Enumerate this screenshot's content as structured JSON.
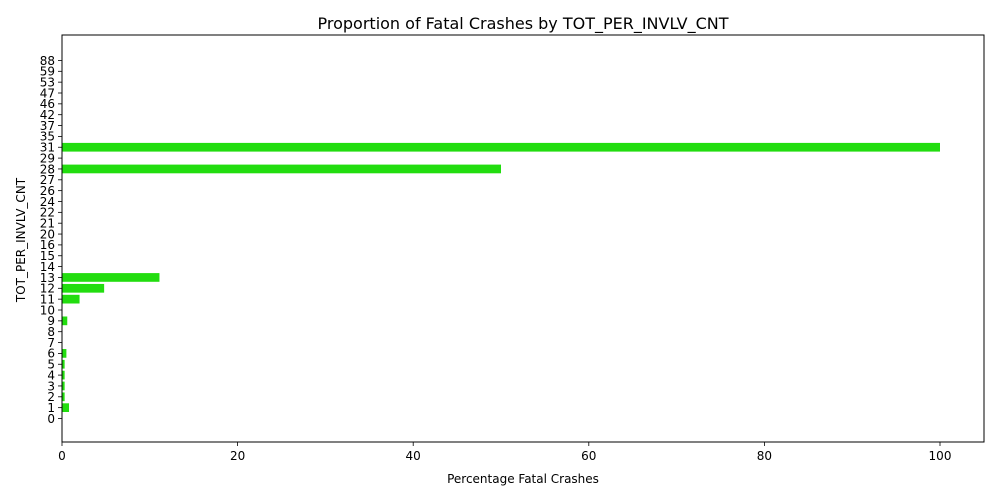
{
  "chart_data": {
    "type": "bar",
    "orientation": "horizontal",
    "title": "Proportion of Fatal Crashes by TOT_PER_INVLV_CNT",
    "xlabel": "Percentage Fatal Crashes",
    "ylabel": "TOT_PER_INVLV_CNT",
    "xlim": [
      0,
      105
    ],
    "x_ticks": [
      0,
      20,
      40,
      60,
      80,
      100
    ],
    "grid": false,
    "legend": "none",
    "bar_color": "#22dd0f",
    "categories": [
      "0",
      "1",
      "2",
      "3",
      "4",
      "5",
      "6",
      "7",
      "8",
      "9",
      "10",
      "11",
      "12",
      "13",
      "14",
      "15",
      "16",
      "20",
      "21",
      "22",
      "24",
      "26",
      "27",
      "28",
      "29",
      "31",
      "35",
      "37",
      "42",
      "46",
      "47",
      "53",
      "59",
      "88"
    ],
    "values": [
      0,
      0.8,
      0.3,
      0.3,
      0.3,
      0.3,
      0.5,
      0,
      0,
      0.6,
      0,
      2.0,
      4.8,
      11.1,
      0,
      0,
      0,
      0,
      0,
      0,
      0,
      0,
      0,
      50,
      0,
      100,
      0,
      0,
      0,
      0,
      0,
      0,
      0,
      0
    ]
  }
}
